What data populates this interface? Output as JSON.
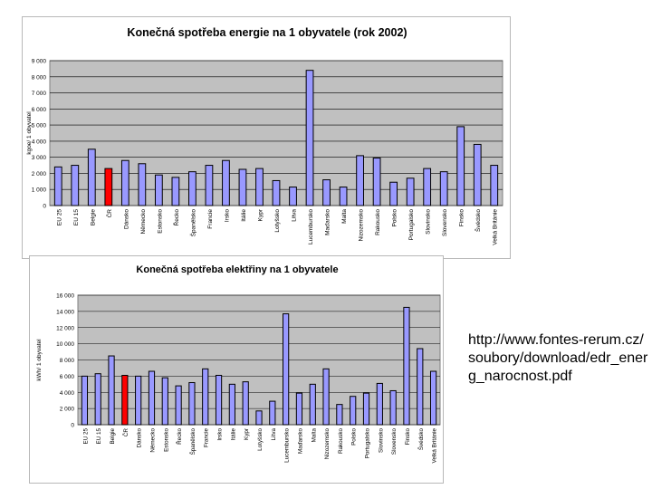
{
  "colors": {
    "plot_bg": "#c0c0c0",
    "bar": "#9999ff",
    "highlight": "#ff0000",
    "bar_edge": "#000000",
    "grid": "#000000"
  },
  "source": {
    "text": "http://www.fontes-rerum.cz/soubory/download/edr_energ_narocnost.pdf"
  },
  "chart_data": [
    {
      "type": "bar",
      "title": "Konečná spotřeba energie na 1 obyvatele (rok 2002)",
      "ylabel": "kgoe/ 1 obyvatel",
      "xlabel": "",
      "ylim": [
        0,
        9000
      ],
      "yticks": [
        0,
        1000,
        2000,
        3000,
        4000,
        5000,
        6000,
        7000,
        8000,
        9000
      ],
      "ytick_labels": [
        "0",
        "1 000",
        "2 000",
        "3 000",
        "4 000",
        "5 000",
        "6 000",
        "7 000",
        "8 000",
        "9 000"
      ],
      "highlight": [
        "ČR"
      ],
      "categories": [
        "EU 25",
        "EU 15",
        "Belgie",
        "ČR",
        "Dánsko",
        "Německo",
        "Estonsko",
        "Řecko",
        "Španělsko",
        "Francie",
        "Irsko",
        "Itálie",
        "Kypr",
        "Lotyšsko",
        "Litva",
        "Lucembursko",
        "Maďarsko",
        "Malta",
        "Nizozemsko",
        "Rakousko",
        "Polsko",
        "Portugalsko",
        "Slovinsko",
        "Slovensko",
        "Finsko",
        "Švédsko",
        "Velká Británie"
      ],
      "values": [
        2400,
        2500,
        3500,
        2300,
        2800,
        2600,
        1900,
        1750,
        2100,
        2500,
        2800,
        2250,
        2300,
        1550,
        1150,
        8400,
        1600,
        1150,
        3100,
        2950,
        1450,
        1700,
        2300,
        2100,
        4900,
        3800,
        2500
      ]
    },
    {
      "type": "bar",
      "title": "Konečná spotřeba elektřiny na 1 obyvatele",
      "ylabel": "kWh/ 1 obyvatel",
      "xlabel": "",
      "ylim": [
        0,
        16000
      ],
      "yticks": [
        0,
        2000,
        4000,
        6000,
        8000,
        10000,
        12000,
        14000,
        16000
      ],
      "ytick_labels": [
        "0",
        "2 000",
        "4 000",
        "6 000",
        "8 000",
        "10 000",
        "12 000",
        "14 000",
        "16 000"
      ],
      "highlight": [
        "ČR"
      ],
      "categories": [
        "EU 25",
        "EU 15",
        "Belgie",
        "ČR",
        "Dánsko",
        "Německo",
        "Estonsko",
        "Řecko",
        "Španělsko",
        "Francie",
        "Irsko",
        "Itálie",
        "Kypr",
        "Lotyšsko",
        "Litva",
        "Lucembursko",
        "Maďarsko",
        "Malta",
        "Nizozemsko",
        "Rakousko",
        "Polsko",
        "Portugalsko",
        "Slovinsko",
        "Slovensko",
        "Finsko",
        "Švédsko",
        "Velká Británie"
      ],
      "values": [
        6000,
        6300,
        8500,
        6100,
        6000,
        6600,
        5800,
        4800,
        5200,
        6900,
        6100,
        5000,
        5300,
        1700,
        2900,
        13700,
        3900,
        5000,
        6900,
        2500,
        3500,
        3900,
        5100,
        4200,
        14500,
        9400,
        6600
      ]
    }
  ]
}
